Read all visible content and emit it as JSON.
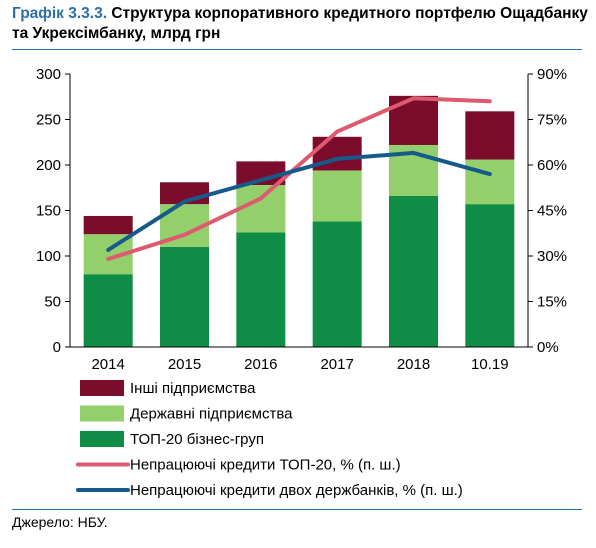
{
  "header": {
    "figure_number": "Графік 3.3.3.",
    "title": "Структура корпоративного кредитного портфелю Ощадбанку та Укрексімбанку, млрд грн"
  },
  "source": "Джерело: НБУ.",
  "colors": {
    "other": "#7b0c2c",
    "state": "#93cf6b",
    "top20": "#0f8c45",
    "npl_top20": "#de5a6e",
    "npl_banks": "#155a8a",
    "accent": "#2a6fa8"
  },
  "chart_data": {
    "type": "bar",
    "stacked": true,
    "categories": [
      "2014",
      "2015",
      "2016",
      "2017",
      "2018",
      "10.19"
    ],
    "series": [
      {
        "name": "ТОП-20 бізнес-груп",
        "kind": "bar",
        "axis": "left",
        "color": "#0f8c45",
        "values": [
          80,
          110,
          126,
          138,
          166,
          157
        ]
      },
      {
        "name": "Державні підприємства",
        "kind": "bar",
        "axis": "left",
        "color": "#93cf6b",
        "values": [
          44,
          47,
          52,
          56,
          56,
          49
        ]
      },
      {
        "name": "Інші підприємства",
        "kind": "bar",
        "axis": "left",
        "color": "#7b0c2c",
        "values": [
          20,
          24,
          26,
          37,
          54,
          53
        ]
      },
      {
        "name": "Непрацюючі кредити ТОП-20, % (п. ш.)",
        "kind": "line",
        "axis": "right",
        "color": "#de5a6e",
        "values": [
          29,
          37,
          49,
          71,
          82,
          81
        ]
      },
      {
        "name": "Непрацюючі кредити двох держбанків, % (п. ш.)",
        "kind": "line",
        "axis": "right",
        "color": "#155a8a",
        "values": [
          32,
          48,
          55,
          62,
          64,
          57
        ]
      }
    ],
    "left_axis": {
      "ylim": [
        0,
        300
      ],
      "ticks": [
        "0",
        "50",
        "100",
        "150",
        "200",
        "250",
        "300"
      ]
    },
    "right_axis": {
      "ylim": [
        0,
        90
      ],
      "ticks": [
        "0%",
        "15%",
        "30%",
        "45%",
        "60%",
        "75%",
        "90%"
      ]
    },
    "legend_order": [
      2,
      1,
      0,
      3,
      4
    ],
    "legend_position": "bottom",
    "grid": false
  }
}
